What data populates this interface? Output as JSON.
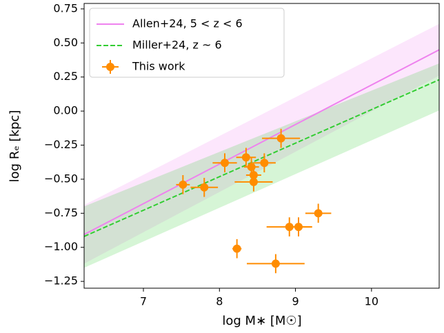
{
  "chart_data": {
    "type": "scatter",
    "xlabel": "log M∗ [M☉]",
    "ylabel": "log Rₑ [kpc]",
    "xlim": [
      6.22,
      10.89
    ],
    "ylim": [
      -1.3,
      0.79
    ],
    "xticks": [
      7,
      8,
      9,
      10
    ],
    "yticks": [
      {
        "value": -1.25,
        "label": "−1.25"
      },
      {
        "value": -1.0,
        "label": "−1.00"
      },
      {
        "value": -0.75,
        "label": "−0.75"
      },
      {
        "value": -0.5,
        "label": "−0.50"
      },
      {
        "value": -0.25,
        "label": "−0.25"
      },
      {
        "value": 0.0,
        "label": "0.00"
      },
      {
        "value": 0.25,
        "label": "0.25"
      },
      {
        "value": 0.5,
        "label": "0.50"
      },
      {
        "value": 0.75,
        "label": "0.75"
      }
    ],
    "legend": "upper left",
    "lines": [
      {
        "name": "Allen+24, 5 < z < 6",
        "color": "#ee82ee",
        "dash": false,
        "x": [
          6.22,
          10.89
        ],
        "values": [
          -0.906,
          0.45
        ],
        "band_lower": [
          -1.12,
          0.26
        ],
        "band_upper": [
          -0.69,
          0.64
        ]
      },
      {
        "name": "Miller+24, z ~ 6",
        "color": "#32cd32",
        "dash": true,
        "x": [
          6.22,
          10.89
        ],
        "values": [
          -0.92,
          0.23
        ],
        "band_lower": [
          -1.15,
          0.005
        ],
        "band_upper": [
          -0.7,
          0.35
        ]
      }
    ],
    "series": [
      {
        "name": "This work",
        "color": "#ff8c00",
        "x": [
          7.52,
          7.8,
          8.07,
          8.35,
          8.42,
          8.45,
          8.45,
          8.59,
          8.81,
          9.3,
          8.92,
          9.04,
          8.23,
          8.74
        ],
        "values": [
          -0.54,
          -0.56,
          -0.38,
          -0.34,
          -0.41,
          -0.47,
          -0.52,
          -0.38,
          -0.2,
          -0.75,
          -0.85,
          -0.85,
          -1.01,
          -1.12
        ],
        "xerr": [
          0.09,
          0.18,
          0.16,
          0.13,
          0.1,
          0.1,
          0.25,
          0.15,
          0.25,
          0.17,
          0.3,
          0.17,
          0.06,
          0.38
        ],
        "yerr": [
          0.07,
          0.07,
          0.07,
          0.07,
          0.07,
          0.07,
          0.07,
          0.07,
          0.07,
          0.07,
          0.07,
          0.07,
          0.07,
          0.07
        ]
      }
    ]
  }
}
